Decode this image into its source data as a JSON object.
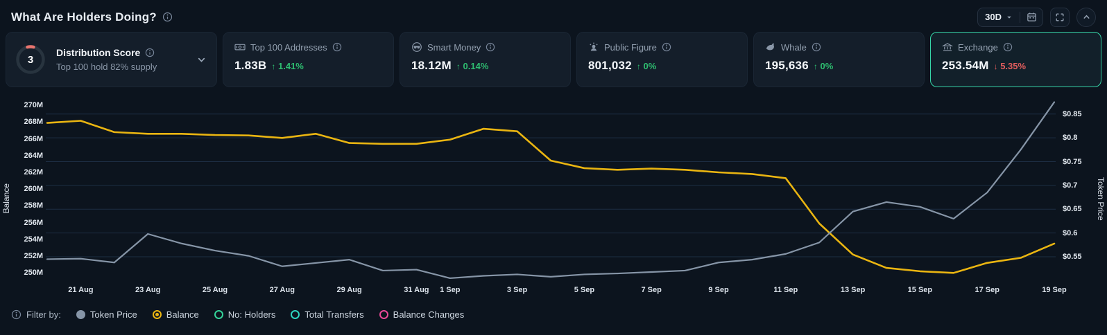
{
  "colors": {
    "accent_green": "#2ebd70",
    "accent_red": "#e25d5d",
    "balance_line": "#eab511",
    "price_line": "#8695a7",
    "selected_card_border": "#36d6a8",
    "gauge_arc": "#e9756f",
    "gridline": "rgba(90,140,200,0.22)"
  },
  "header": {
    "title": "What Are Holders Doing?",
    "range_label": "30D",
    "info_icon": "info-icon",
    "range_caret_icon": "chevron-down-icon",
    "calendar_icon": "calendar-icon",
    "fullscreen_icon": "fullscreen-icon",
    "collapse_icon": "chevron-up-icon"
  },
  "cards": {
    "distribution": {
      "score": "3",
      "title": "Distribution Score",
      "subtitle": "Top 100 hold 82% supply",
      "info_icon": "info-icon",
      "expand_icon": "chevron-down-icon"
    },
    "stats": [
      {
        "icon": "banknote-icon",
        "label": "Top 100 Addresses",
        "value": "1.83B",
        "arrow": "↑",
        "change": "1.41%",
        "direction": "up",
        "selected": false
      },
      {
        "icon": "smart-money-icon",
        "label": "Smart Money",
        "value": "18.12M",
        "arrow": "↑",
        "change": "0.14%",
        "direction": "up",
        "selected": false
      },
      {
        "icon": "public-figure-icon",
        "label": "Public Figure",
        "value": "801,032",
        "arrow": "↑",
        "change": "0%",
        "direction": "up",
        "selected": false
      },
      {
        "icon": "whale-icon",
        "label": "Whale",
        "value": "195,636",
        "arrow": "↑",
        "change": "0%",
        "direction": "up",
        "selected": false
      },
      {
        "icon": "exchange-icon",
        "label": "Exchange",
        "value": "253.54M",
        "arrow": "↓",
        "change": "5.35%",
        "direction": "down",
        "selected": true
      }
    ]
  },
  "chart_data": {
    "type": "line",
    "x": [
      "20 Aug",
      "21 Aug",
      "22 Aug",
      "23 Aug",
      "24 Aug",
      "25 Aug",
      "26 Aug",
      "27 Aug",
      "28 Aug",
      "29 Aug",
      "30 Aug",
      "31 Aug",
      "1 Sep",
      "2 Sep",
      "3 Sep",
      "4 Sep",
      "5 Sep",
      "6 Sep",
      "7 Sep",
      "8 Sep",
      "9 Sep",
      "10 Sep",
      "11 Sep",
      "12 Sep",
      "13 Sep",
      "14 Sep",
      "15 Sep",
      "16 Sep",
      "17 Sep",
      "18 Sep",
      "19 Sep"
    ],
    "x_ticks": [
      "21 Aug",
      "23 Aug",
      "25 Aug",
      "27 Aug",
      "29 Aug",
      "31 Aug",
      "1 Sep",
      "3 Sep",
      "5 Sep",
      "7 Sep",
      "9 Sep",
      "11 Sep",
      "13 Sep",
      "15 Sep",
      "17 Sep",
      "19 Sep"
    ],
    "series": [
      {
        "name": "Balance",
        "axis": "left",
        "color": "#eab511",
        "unit": "M",
        "values": [
          267.9,
          268.15,
          266.8,
          266.6,
          266.6,
          266.45,
          266.4,
          266.1,
          266.6,
          265.5,
          265.4,
          265.4,
          265.9,
          267.2,
          266.9,
          263.4,
          262.5,
          262.3,
          262.45,
          262.3,
          262.0,
          261.8,
          261.3,
          255.9,
          252.2,
          250.6,
          250.2,
          250.0,
          251.2,
          251.8,
          253.5
        ]
      },
      {
        "name": "Token Price",
        "axis": "right",
        "color": "#8695a7",
        "unit": "$",
        "values": [
          0.545,
          0.546,
          0.538,
          0.598,
          0.578,
          0.563,
          0.552,
          0.53,
          0.537,
          0.544,
          0.521,
          0.523,
          0.505,
          0.51,
          0.513,
          0.508,
          0.513,
          0.515,
          0.518,
          0.521,
          0.538,
          0.544,
          0.556,
          0.58,
          0.645,
          0.665,
          0.655,
          0.63,
          0.685,
          0.775,
          0.875
        ]
      }
    ],
    "left_axis": {
      "label": "Balance",
      "ticks": [
        "270M",
        "268M",
        "266M",
        "264M",
        "262M",
        "260M",
        "258M",
        "256M",
        "254M",
        "252M",
        "250M"
      ],
      "tick_values": [
        270,
        268,
        266,
        264,
        262,
        260,
        258,
        256,
        254,
        252,
        250
      ],
      "min": 249.2,
      "max": 271.0
    },
    "right_axis": {
      "label": "Token Price",
      "ticks": [
        "$0.85",
        "$0.8",
        "$0.75",
        "$0.7",
        "$0.65",
        "$0.6",
        "$0.55"
      ],
      "tick_values": [
        0.85,
        0.8,
        0.75,
        0.7,
        0.65,
        0.6,
        0.55
      ],
      "min": 0.502,
      "max": 0.886
    },
    "grid": "horizontal lines at right-axis ticks",
    "legend_position": "bottom-left"
  },
  "legend": {
    "info_icon": "info-icon",
    "label": "Filter by:",
    "items": [
      {
        "label": "Token Price",
        "color": "#8695a7",
        "style": "filled"
      },
      {
        "label": "Balance",
        "color": "#eab511",
        "style": "selected"
      },
      {
        "label": "No: Holders",
        "color": "#34d399",
        "style": "ring"
      },
      {
        "label": "Total Transfers",
        "color": "#2dd4bf",
        "style": "ring"
      },
      {
        "label": "Balance Changes",
        "color": "#ec4899",
        "style": "ring"
      }
    ]
  }
}
